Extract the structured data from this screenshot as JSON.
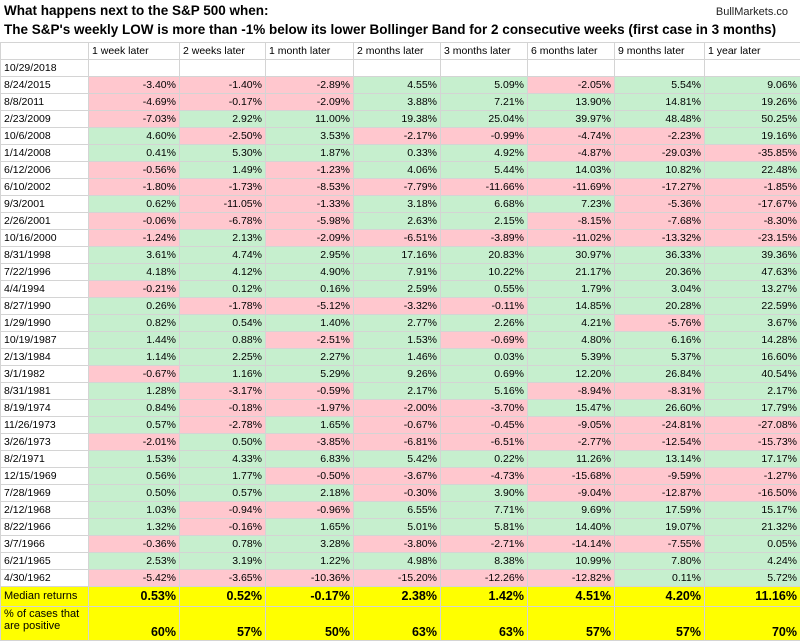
{
  "title_line1": "What happens next to the S&P 500 when:",
  "title_line2": "The S&P's weekly LOW is more than -1% below its lower Bollinger Band for 2 consecutive weeks (first case in 3 months)",
  "source": "BullMarkets.co",
  "chart_data": {
    "type": "table",
    "columns": [
      "1 week later",
      "2 weeks later",
      "1 month later",
      "2 months later",
      "3 months later",
      "6 months later",
      "9 months later",
      "1 year later"
    ],
    "rows": [
      {
        "date": "10/29/2018",
        "values": [
          "",
          "",
          "",
          "",
          "",
          "",
          "",
          ""
        ]
      },
      {
        "date": "8/24/2015",
        "values": [
          "-3.40%",
          "-1.40%",
          "-2.89%",
          "4.55%",
          "5.09%",
          "-2.05%",
          "5.54%",
          "9.06%"
        ]
      },
      {
        "date": "8/8/2011",
        "values": [
          "-4.69%",
          "-0.17%",
          "-2.09%",
          "3.88%",
          "7.21%",
          "13.90%",
          "14.81%",
          "19.26%"
        ]
      },
      {
        "date": "2/23/2009",
        "values": [
          "-7.03%",
          "2.92%",
          "11.00%",
          "19.38%",
          "25.04%",
          "39.97%",
          "48.48%",
          "50.25%"
        ]
      },
      {
        "date": "10/6/2008",
        "values": [
          "4.60%",
          "-2.50%",
          "3.53%",
          "-2.17%",
          "-0.99%",
          "-4.74%",
          "-2.23%",
          "19.16%"
        ]
      },
      {
        "date": "1/14/2008",
        "values": [
          "0.41%",
          "5.30%",
          "1.87%",
          "0.33%",
          "4.92%",
          "-4.87%",
          "-29.03%",
          "-35.85%"
        ]
      },
      {
        "date": "6/12/2006",
        "values": [
          "-0.56%",
          "1.49%",
          "-1.23%",
          "4.06%",
          "5.44%",
          "14.03%",
          "10.82%",
          "22.48%"
        ]
      },
      {
        "date": "6/10/2002",
        "values": [
          "-1.80%",
          "-1.73%",
          "-8.53%",
          "-7.79%",
          "-11.66%",
          "-11.69%",
          "-17.27%",
          "-1.85%"
        ]
      },
      {
        "date": "9/3/2001",
        "values": [
          "0.62%",
          "-11.05%",
          "-1.33%",
          "3.18%",
          "6.68%",
          "7.23%",
          "-5.36%",
          "-17.67%"
        ]
      },
      {
        "date": "2/26/2001",
        "values": [
          "-0.06%",
          "-6.78%",
          "-5.98%",
          "2.63%",
          "2.15%",
          "-8.15%",
          "-7.68%",
          "-8.30%"
        ]
      },
      {
        "date": "10/16/2000",
        "values": [
          "-1.24%",
          "2.13%",
          "-2.09%",
          "-6.51%",
          "-3.89%",
          "-11.02%",
          "-13.32%",
          "-23.15%"
        ]
      },
      {
        "date": "8/31/1998",
        "values": [
          "3.61%",
          "4.74%",
          "2.95%",
          "17.16%",
          "20.83%",
          "30.97%",
          "36.33%",
          "39.36%"
        ]
      },
      {
        "date": "7/22/1996",
        "values": [
          "4.18%",
          "4.12%",
          "4.90%",
          "7.91%",
          "10.22%",
          "21.17%",
          "20.36%",
          "47.63%"
        ]
      },
      {
        "date": "4/4/1994",
        "values": [
          "-0.21%",
          "0.12%",
          "0.16%",
          "2.59%",
          "0.55%",
          "1.79%",
          "3.04%",
          "13.27%"
        ]
      },
      {
        "date": "8/27/1990",
        "values": [
          "0.26%",
          "-1.78%",
          "-5.12%",
          "-3.32%",
          "-0.11%",
          "14.85%",
          "20.28%",
          "22.59%"
        ]
      },
      {
        "date": "1/29/1990",
        "values": [
          "0.82%",
          "0.54%",
          "1.40%",
          "2.77%",
          "2.26%",
          "4.21%",
          "-5.76%",
          "3.67%"
        ]
      },
      {
        "date": "10/19/1987",
        "values": [
          "1.44%",
          "0.88%",
          "-2.51%",
          "1.53%",
          "-0.69%",
          "4.80%",
          "6.16%",
          "14.28%"
        ]
      },
      {
        "date": "2/13/1984",
        "values": [
          "1.14%",
          "2.25%",
          "2.27%",
          "1.46%",
          "0.03%",
          "5.39%",
          "5.37%",
          "16.60%"
        ]
      },
      {
        "date": "3/1/1982",
        "values": [
          "-0.67%",
          "1.16%",
          "5.29%",
          "9.26%",
          "0.69%",
          "12.20%",
          "26.84%",
          "40.54%"
        ]
      },
      {
        "date": "8/31/1981",
        "values": [
          "1.28%",
          "-3.17%",
          "-0.59%",
          "2.17%",
          "5.16%",
          "-8.94%",
          "-8.31%",
          "2.17%"
        ]
      },
      {
        "date": "8/19/1974",
        "values": [
          "0.84%",
          "-0.18%",
          "-1.97%",
          "-2.00%",
          "-3.70%",
          "15.47%",
          "26.60%",
          "17.79%"
        ]
      },
      {
        "date": "11/26/1973",
        "values": [
          "0.57%",
          "-2.78%",
          "1.65%",
          "-0.67%",
          "-0.45%",
          "-9.05%",
          "-24.81%",
          "-27.08%"
        ]
      },
      {
        "date": "3/26/1973",
        "values": [
          "-2.01%",
          "0.50%",
          "-3.85%",
          "-6.81%",
          "-6.51%",
          "-2.77%",
          "-12.54%",
          "-15.73%"
        ]
      },
      {
        "date": "8/2/1971",
        "values": [
          "1.53%",
          "4.33%",
          "6.83%",
          "5.42%",
          "0.22%",
          "11.26%",
          "13.14%",
          "17.17%"
        ]
      },
      {
        "date": "12/15/1969",
        "values": [
          "0.56%",
          "1.77%",
          "-0.50%",
          "-3.67%",
          "-4.73%",
          "-15.68%",
          "-9.59%",
          "-1.27%"
        ]
      },
      {
        "date": "7/28/1969",
        "values": [
          "0.50%",
          "0.57%",
          "2.18%",
          "-0.30%",
          "3.90%",
          "-9.04%",
          "-12.87%",
          "-16.50%"
        ]
      },
      {
        "date": "2/12/1968",
        "values": [
          "1.03%",
          "-0.94%",
          "-0.96%",
          "6.55%",
          "7.71%",
          "9.69%",
          "17.59%",
          "15.17%"
        ]
      },
      {
        "date": "8/22/1966",
        "values": [
          "1.32%",
          "-0.16%",
          "1.65%",
          "5.01%",
          "5.81%",
          "14.40%",
          "19.07%",
          "21.32%"
        ]
      },
      {
        "date": "3/7/1966",
        "values": [
          "-0.36%",
          "0.78%",
          "3.28%",
          "-3.80%",
          "-2.71%",
          "-14.14%",
          "-7.55%",
          "0.05%"
        ]
      },
      {
        "date": "6/21/1965",
        "values": [
          "2.53%",
          "3.19%",
          "1.22%",
          "4.98%",
          "8.38%",
          "10.99%",
          "7.80%",
          "4.24%"
        ]
      },
      {
        "date": "4/30/1962",
        "values": [
          "-5.42%",
          "-3.65%",
          "-10.36%",
          "-15.20%",
          "-12.26%",
          "-12.82%",
          "0.11%",
          "5.72%"
        ]
      }
    ],
    "summary": [
      {
        "label": "Median returns",
        "values": [
          "0.53%",
          "0.52%",
          "-0.17%",
          "2.38%",
          "1.42%",
          "4.51%",
          "4.20%",
          "11.16%"
        ]
      },
      {
        "label": "% of cases that are positive",
        "label_lines": [
          "% of cases that",
          "are positive"
        ],
        "values": [
          "60%",
          "57%",
          "50%",
          "63%",
          "63%",
          "57%",
          "57%",
          "70%"
        ]
      }
    ]
  },
  "colors": {
    "positive": "#c6efce",
    "negative": "#ffc7ce",
    "summary": "#ffff00",
    "border": "#d4d4d4"
  }
}
